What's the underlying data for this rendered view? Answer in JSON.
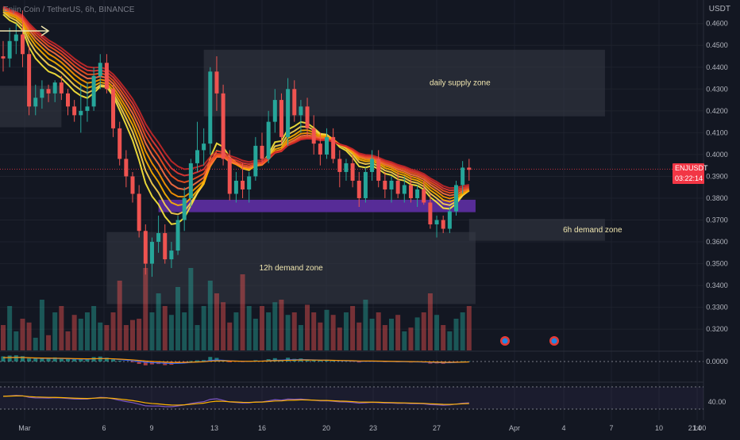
{
  "header": {
    "symbol_line": "Enjin Coin / TetherUS, 6h, BINANCE",
    "currency": "USDT"
  },
  "price_tag": {
    "symbol": "ENJUSDT",
    "price": "0.3933",
    "countdown": "03:22:14"
  },
  "colors": {
    "background": "#131722",
    "grid": "#1e222d",
    "up": "#26a69a",
    "down": "#ef5350",
    "zone": "#363a45",
    "purple_zone": "#5b2d9e",
    "price_line": "#f23645"
  },
  "zones": [
    {
      "label": "daily supply zone",
      "y1": 0.4175,
      "y2": 0.448,
      "x_from": 31,
      "x_to": 93
    },
    {
      "label": "",
      "y1": 0.4125,
      "y2": 0.4315,
      "x_from": -1,
      "x_to": 9
    },
    {
      "label": "6h demand zone",
      "y1": 0.3605,
      "y2": 0.3705,
      "x_from": 72,
      "x_to": 93
    },
    {
      "label": "12h demand zone",
      "y1": 0.3315,
      "y2": 0.3645,
      "x_from": 16,
      "x_to": 73
    },
    {
      "label": "",
      "y1": 0.3736,
      "y2": 0.3793,
      "x_from": 24,
      "x_to": 73
    }
  ],
  "chart_data": {
    "type": "candlestick",
    "title": "Enjin Coin / TetherUS, 6h, BINANCE",
    "y_axis_ticks": [
      "0.4600",
      "0.4500",
      "0.4400",
      "0.4300",
      "0.4200",
      "0.4100",
      "0.4000",
      "0.3900",
      "0.3800",
      "0.3700",
      "0.3600",
      "0.3500",
      "0.3400",
      "0.3300",
      "0.3200"
    ],
    "ylim": [
      0.3168,
      0.4628
    ],
    "x_axis_ticks": [
      "Mar",
      "6",
      "9",
      "13",
      "16",
      "20",
      "23",
      "27",
      "Apr",
      "4",
      "7",
      "10",
      "14",
      "21:00"
    ],
    "last_price": 0.3933,
    "candles": [
      [
        0.445,
        0.452,
        0.438,
        0.444
      ],
      [
        0.444,
        0.458,
        0.44,
        0.452
      ],
      [
        0.452,
        0.46,
        0.446,
        0.455
      ],
      [
        0.455,
        0.466,
        0.44,
        0.446
      ],
      [
        0.446,
        0.45,
        0.418,
        0.422
      ],
      [
        0.422,
        0.432,
        0.418,
        0.426
      ],
      [
        0.426,
        0.434,
        0.421,
        0.43
      ],
      [
        0.43,
        0.432,
        0.424,
        0.428
      ],
      [
        0.428,
        0.434,
        0.424,
        0.433
      ],
      [
        0.433,
        0.436,
        0.425,
        0.428
      ],
      [
        0.428,
        0.43,
        0.418,
        0.422
      ],
      [
        0.422,
        0.425,
        0.415,
        0.418
      ],
      [
        0.418,
        0.432,
        0.41,
        0.42
      ],
      [
        0.42,
        0.433,
        0.415,
        0.422
      ],
      [
        0.422,
        0.44,
        0.42,
        0.436
      ],
      [
        0.436,
        0.446,
        0.43,
        0.442
      ],
      [
        0.442,
        0.446,
        0.428,
        0.43
      ],
      [
        0.43,
        0.432,
        0.408,
        0.412
      ],
      [
        0.412,
        0.415,
        0.395,
        0.398
      ],
      [
        0.398,
        0.402,
        0.385,
        0.39
      ],
      [
        0.39,
        0.392,
        0.378,
        0.382
      ],
      [
        0.382,
        0.386,
        0.362,
        0.365
      ],
      [
        0.365,
        0.368,
        0.345,
        0.35
      ],
      [
        0.35,
        0.362,
        0.344,
        0.36
      ],
      [
        0.36,
        0.372,
        0.355,
        0.364
      ],
      [
        0.364,
        0.368,
        0.35,
        0.352
      ],
      [
        0.352,
        0.36,
        0.348,
        0.356
      ],
      [
        0.356,
        0.372,
        0.354,
        0.37
      ],
      [
        0.37,
        0.385,
        0.365,
        0.38
      ],
      [
        0.38,
        0.398,
        0.376,
        0.396
      ],
      [
        0.396,
        0.415,
        0.392,
        0.402
      ],
      [
        0.402,
        0.412,
        0.395,
        0.405
      ],
      [
        0.405,
        0.44,
        0.4,
        0.438
      ],
      [
        0.438,
        0.445,
        0.42,
        0.428
      ],
      [
        0.428,
        0.432,
        0.395,
        0.398
      ],
      [
        0.398,
        0.402,
        0.379,
        0.382
      ],
      [
        0.382,
        0.392,
        0.378,
        0.388
      ],
      [
        0.388,
        0.396,
        0.38,
        0.384
      ],
      [
        0.384,
        0.392,
        0.378,
        0.39
      ],
      [
        0.39,
        0.408,
        0.388,
        0.404
      ],
      [
        0.404,
        0.41,
        0.395,
        0.398
      ],
      [
        0.398,
        0.42,
        0.396,
        0.415
      ],
      [
        0.415,
        0.43,
        0.41,
        0.425
      ],
      [
        0.425,
        0.428,
        0.405,
        0.408
      ],
      [
        0.408,
        0.435,
        0.404,
        0.43
      ],
      [
        0.43,
        0.434,
        0.415,
        0.418
      ],
      [
        0.418,
        0.425,
        0.41,
        0.422
      ],
      [
        0.422,
        0.426,
        0.408,
        0.412
      ],
      [
        0.412,
        0.418,
        0.4,
        0.405
      ],
      [
        0.405,
        0.41,
        0.395,
        0.4
      ],
      [
        0.4,
        0.412,
        0.398,
        0.408
      ],
      [
        0.408,
        0.412,
        0.396,
        0.398
      ],
      [
        0.398,
        0.402,
        0.385,
        0.392
      ],
      [
        0.392,
        0.398,
        0.388,
        0.396
      ],
      [
        0.396,
        0.4,
        0.385,
        0.388
      ],
      [
        0.388,
        0.392,
        0.376,
        0.38
      ],
      [
        0.38,
        0.394,
        0.378,
        0.392
      ],
      [
        0.392,
        0.402,
        0.388,
        0.398
      ],
      [
        0.398,
        0.402,
        0.385,
        0.388
      ],
      [
        0.388,
        0.392,
        0.38,
        0.384
      ],
      [
        0.384,
        0.39,
        0.378,
        0.388
      ],
      [
        0.388,
        0.392,
        0.38,
        0.382
      ],
      [
        0.382,
        0.39,
        0.378,
        0.386
      ],
      [
        0.386,
        0.39,
        0.378,
        0.38
      ],
      [
        0.38,
        0.386,
        0.376,
        0.384
      ],
      [
        0.384,
        0.388,
        0.377,
        0.378
      ],
      [
        0.378,
        0.382,
        0.366,
        0.368
      ],
      [
        0.368,
        0.372,
        0.362,
        0.37
      ],
      [
        0.37,
        0.372,
        0.364,
        0.366
      ],
      [
        0.366,
        0.376,
        0.364,
        0.374
      ],
      [
        0.374,
        0.388,
        0.372,
        0.386
      ],
      [
        0.386,
        0.397,
        0.382,
        0.394
      ],
      [
        0.394,
        0.398,
        0.388,
        0.393
      ]
    ],
    "volume": [
      20,
      35,
      15,
      25,
      22,
      10,
      40,
      12,
      30,
      35,
      15,
      28,
      25,
      30,
      35,
      22,
      20,
      30,
      55,
      20,
      24,
      25,
      65,
      30,
      45,
      35,
      28,
      50,
      30,
      65,
      20,
      35,
      55,
      45,
      38,
      22,
      30,
      60,
      35,
      25,
      35,
      30,
      38,
      40,
      28,
      30,
      20,
      36,
      30,
      22,
      32,
      28,
      18,
      30,
      35,
      22,
      40,
      25,
      30,
      20,
      25,
      28,
      15,
      18,
      26,
      30,
      45,
      28,
      20,
      15,
      25,
      30,
      35
    ],
    "oscillator_1": {
      "name": "",
      "zero_line": "0.0000"
    },
    "oscillator_2": {
      "name": "",
      "level": "40.00"
    }
  }
}
